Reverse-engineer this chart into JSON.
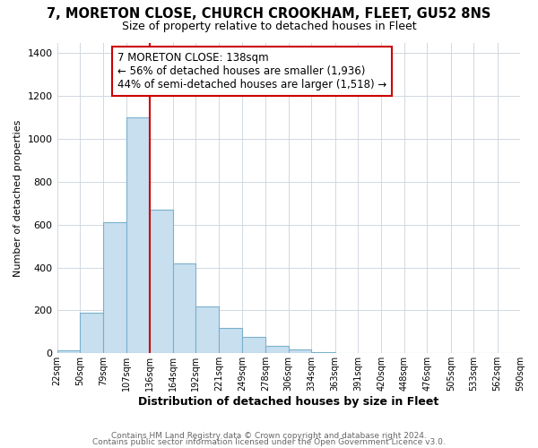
{
  "title": "7, MORETON CLOSE, CHURCH CROOKHAM, FLEET, GU52 8NS",
  "subtitle": "Size of property relative to detached houses in Fleet",
  "xlabel": "Distribution of detached houses by size in Fleet",
  "ylabel": "Number of detached properties",
  "bar_values": [
    15,
    190,
    610,
    1100,
    670,
    420,
    220,
    120,
    75,
    35,
    20,
    5,
    2,
    0,
    0,
    0,
    0,
    0,
    0,
    0
  ],
  "bar_color": "#c8dff0",
  "bar_edge_color": "#7ab0cc",
  "bin_edges": [
    22,
    50,
    79,
    107,
    136,
    164,
    192,
    221,
    249,
    278,
    306,
    334,
    363,
    391,
    420,
    448,
    476,
    505,
    533,
    562,
    590
  ],
  "tick_labels": [
    "22sqm",
    "50sqm",
    "79sqm",
    "107sqm",
    "136sqm",
    "164sqm",
    "192sqm",
    "221sqm",
    "249sqm",
    "278sqm",
    "306sqm",
    "334sqm",
    "363sqm",
    "391sqm",
    "420sqm",
    "448sqm",
    "476sqm",
    "505sqm",
    "533sqm",
    "562sqm",
    "590sqm"
  ],
  "vline_x": 136,
  "vline_color": "#cc0000",
  "ylim": [
    0,
    1450
  ],
  "yticks": [
    0,
    200,
    400,
    600,
    800,
    1000,
    1200,
    1400
  ],
  "annotation_line1": "7 MORETON CLOSE: 138sqm",
  "annotation_line2": "← 56% of detached houses are smaller (1,936)",
  "annotation_line3": "44% of semi-detached houses are larger (1,518) →",
  "annotation_box_color": "#cc0000",
  "footer_line1": "Contains HM Land Registry data © Crown copyright and database right 2024.",
  "footer_line2": "Contains public sector information licensed under the Open Government Licence v3.0.",
  "background_color": "#ffffff",
  "grid_color": "#d0d8e0"
}
